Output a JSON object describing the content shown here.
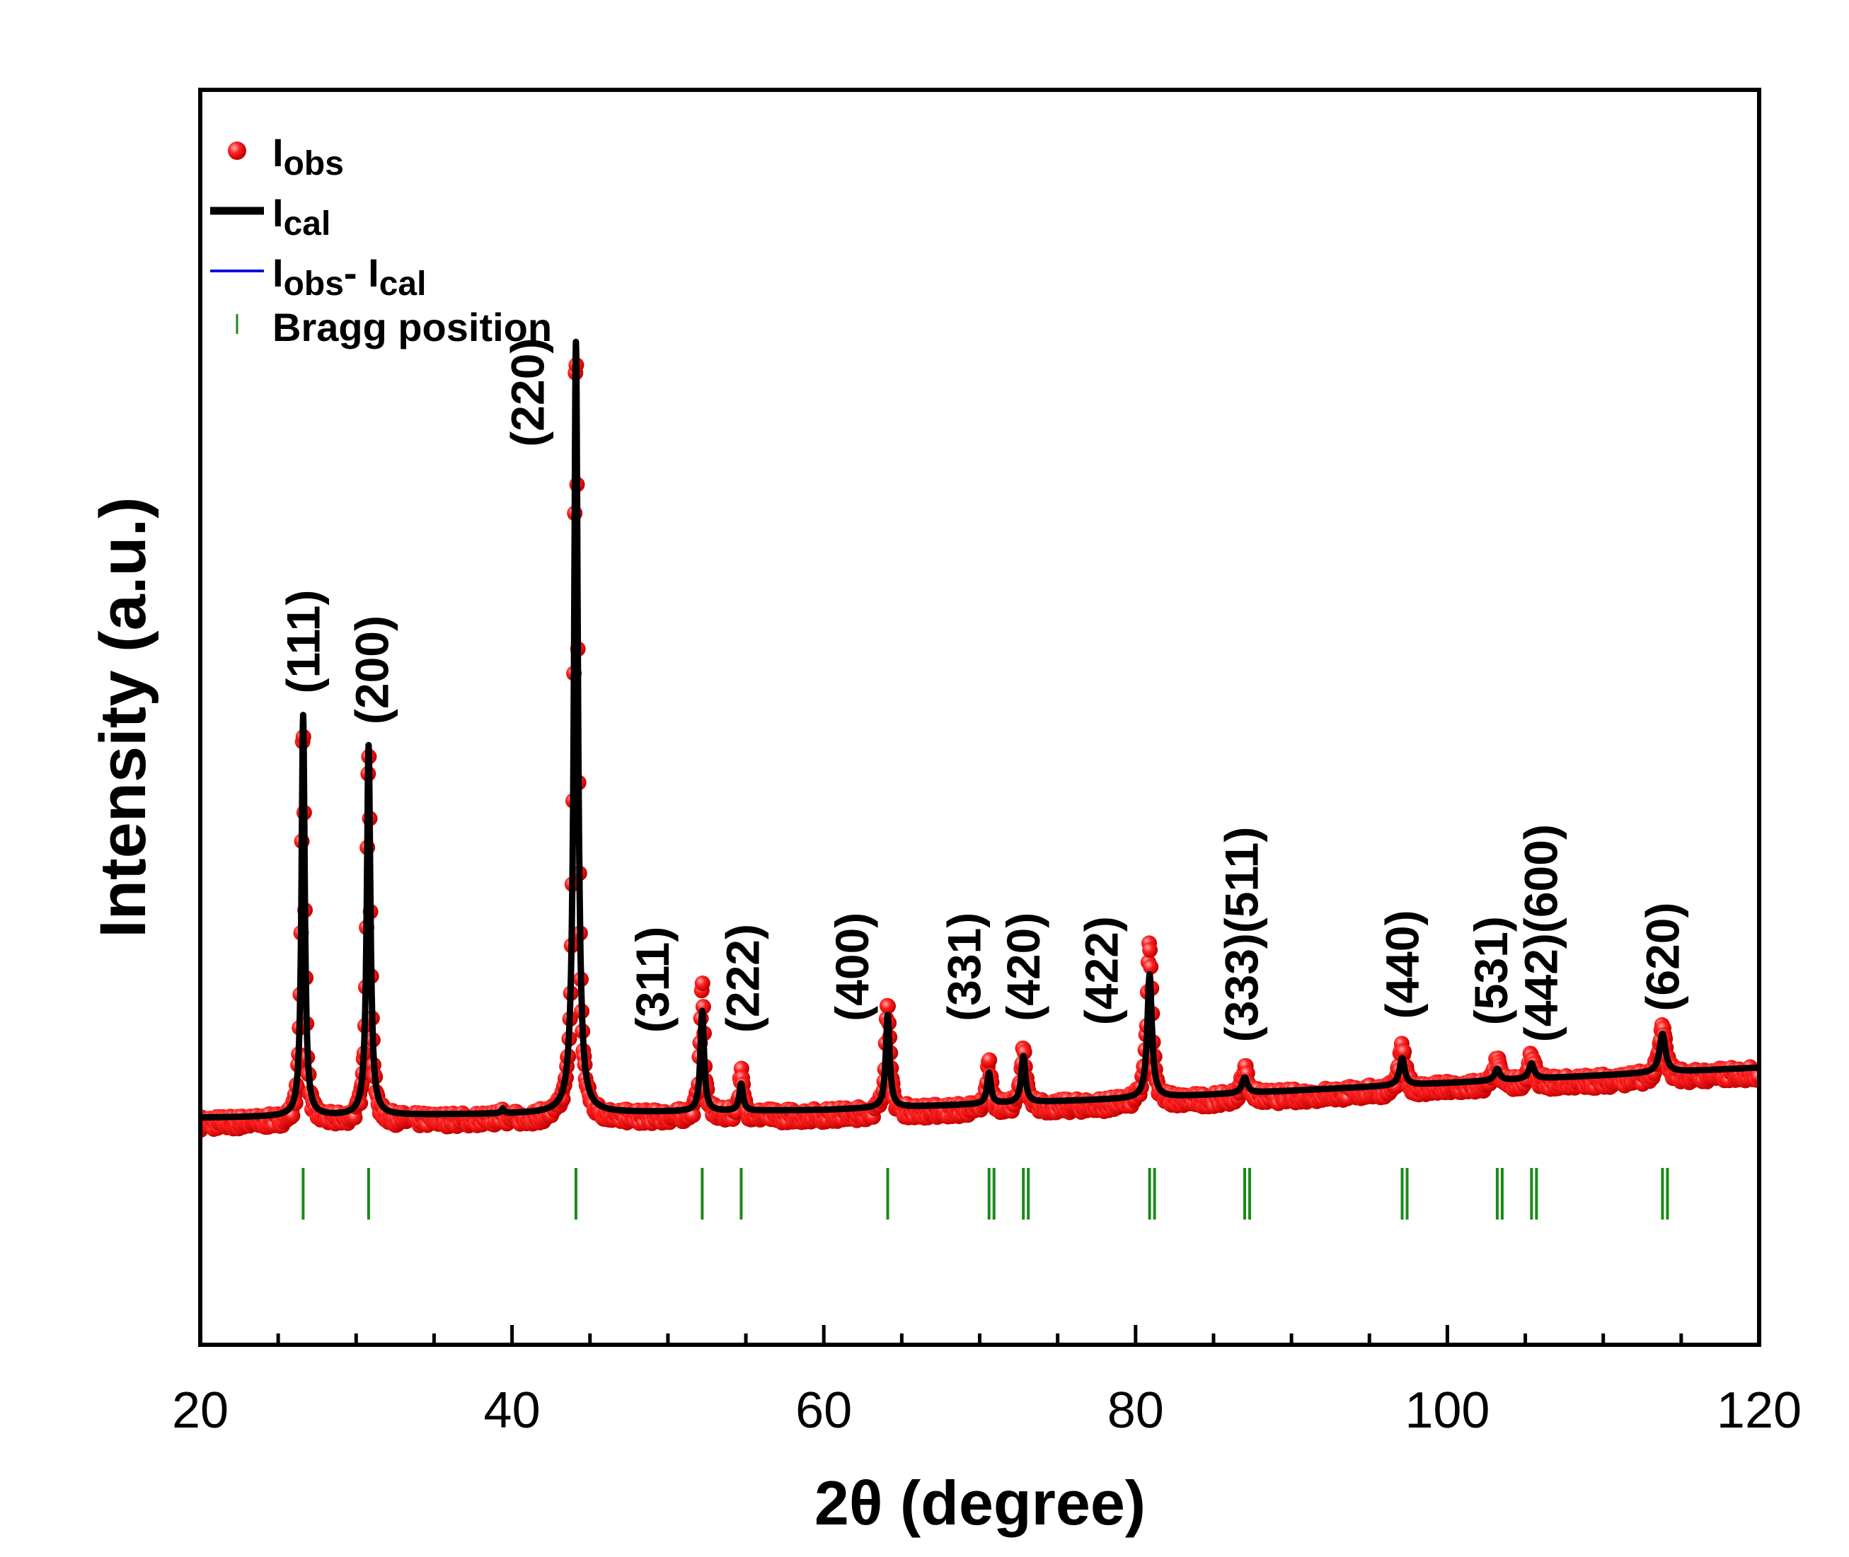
{
  "chart_data": {
    "type": "line",
    "title": "",
    "xlabel": "2θ (degree)",
    "ylabel": "Intensity (a.u.)",
    "xlim": [
      20,
      120
    ],
    "ylim": [
      -0.12,
      1.2
    ],
    "xticks": [
      "20",
      "40",
      "60",
      "80",
      "100",
      "120"
    ],
    "grid": false,
    "legend": {
      "placement": "top-left",
      "entries": [
        {
          "base": "I",
          "sub": "obs",
          "style": "circle",
          "color": "#ff2020"
        },
        {
          "base": "I",
          "sub": "cal",
          "style": "thick-line",
          "color": "#000000"
        },
        {
          "base": "I",
          "sub": "obs",
          "mid": "- ",
          "base2": "I",
          "sub2": "cal",
          "style": "thin-line",
          "color": "#1010e0"
        },
        {
          "base": "Bragg position",
          "style": "tick",
          "color": "#1a8a1a"
        }
      ]
    },
    "baseline_profile": {
      "x": [
        20,
        60,
        80,
        120
      ],
      "y": [
        0.0,
        0.01,
        0.025,
        0.065
      ]
    },
    "difference_offset": -0.28,
    "bragg_row_y": -0.13,
    "peaks": [
      {
        "hkl": "(111)",
        "pos": 26.6,
        "height": 0.52,
        "width": 0.25,
        "obs_excess": 0.0
      },
      {
        "hkl": "(200)",
        "pos": 30.8,
        "height": 0.48,
        "width": 0.28,
        "obs_excess": 0.0
      },
      {
        "hkl": "(220)",
        "pos": 44.1,
        "height": 1.0,
        "width": 0.3,
        "obs_excess": 0.0
      },
      {
        "hkl": "(311)",
        "pos": 52.2,
        "height": 0.13,
        "width": 0.28,
        "obs_excess": 0.04
      },
      {
        "hkl": "(222)",
        "pos": 54.7,
        "height": 0.035,
        "width": 0.28,
        "obs_excess": 0.02
      },
      {
        "hkl": "(400)",
        "pos": 64.1,
        "height": 0.12,
        "width": 0.3,
        "obs_excess": 0.03
      },
      {
        "hkl": "(331)",
        "pos": 70.6,
        "height": 0.04,
        "width": 0.3,
        "obs_excess": 0.02
      },
      {
        "hkl": "(420)",
        "pos": 72.8,
        "height": 0.06,
        "width": 0.32,
        "obs_excess": 0.02
      },
      {
        "hkl": "(422)",
        "pos": 80.9,
        "height": 0.16,
        "width": 0.35,
        "obs_excess": 0.05
      },
      {
        "hkl": "(333)(511)",
        "pos": 87.0,
        "height": 0.02,
        "width": 0.4,
        "obs_excess": 0.02
      },
      {
        "hkl": "(440)",
        "pos": 97.1,
        "height": 0.035,
        "width": 0.4,
        "obs_excess": 0.02
      },
      {
        "hkl": "(531)",
        "pos": 103.2,
        "height": 0.015,
        "width": 0.4,
        "obs_excess": 0.015
      },
      {
        "hkl": "(442)(600)",
        "pos": 105.4,
        "height": 0.02,
        "width": 0.4,
        "obs_excess": 0.015
      },
      {
        "hkl": "(620)",
        "pos": 113.8,
        "height": 0.05,
        "width": 0.45,
        "obs_excess": 0.015
      }
    ],
    "minor_peaks": [
      {
        "pos": 39.4,
        "height": 0.012,
        "width": 0.2
      }
    ],
    "bragg_positions": [
      26.6,
      30.8,
      44.1,
      52.2,
      54.7,
      64.1,
      70.6,
      72.8,
      80.9,
      87.0,
      97.1,
      103.2,
      105.4,
      113.8
    ],
    "bragg_doublet": [
      false,
      false,
      false,
      false,
      false,
      false,
      true,
      true,
      true,
      true,
      true,
      true,
      true,
      true
    ],
    "labels": [
      {
        "text": "(111)",
        "x": 26.6,
        "y": 0.55
      },
      {
        "text": "(200)",
        "x": 31.0,
        "y": 0.51
      },
      {
        "text": "(220)",
        "x": 41.0,
        "y": 0.87
      },
      {
        "text": "(311)",
        "x": 49.0,
        "y": 0.11
      },
      {
        "text": "(222)",
        "x": 54.8,
        "y": 0.11
      },
      {
        "text": "(400)",
        "x": 61.8,
        "y": 0.125
      },
      {
        "text": "(331)",
        "x": 69.0,
        "y": 0.125
      },
      {
        "text": "(420)",
        "x": 72.8,
        "y": 0.125
      },
      {
        "text": "(422)",
        "x": 77.8,
        "y": 0.12
      },
      {
        "text": "(333)(511)",
        "x": 86.8,
        "y": 0.098
      },
      {
        "text": "(440)",
        "x": 97.1,
        "y": 0.128
      },
      {
        "text": "(531)",
        "x": 102.8,
        "y": 0.12
      },
      {
        "text": "(442)(600)",
        "x": 106.0,
        "y": 0.098
      },
      {
        "text": "(620)",
        "x": 113.8,
        "y": 0.138
      }
    ]
  },
  "colors": {
    "obs": "#ff2020",
    "obs_highlight": "#ffb0b0",
    "cal": "#000000",
    "diff": "#1010e0",
    "bragg": "#1a8a1a",
    "axis": "#000000"
  }
}
